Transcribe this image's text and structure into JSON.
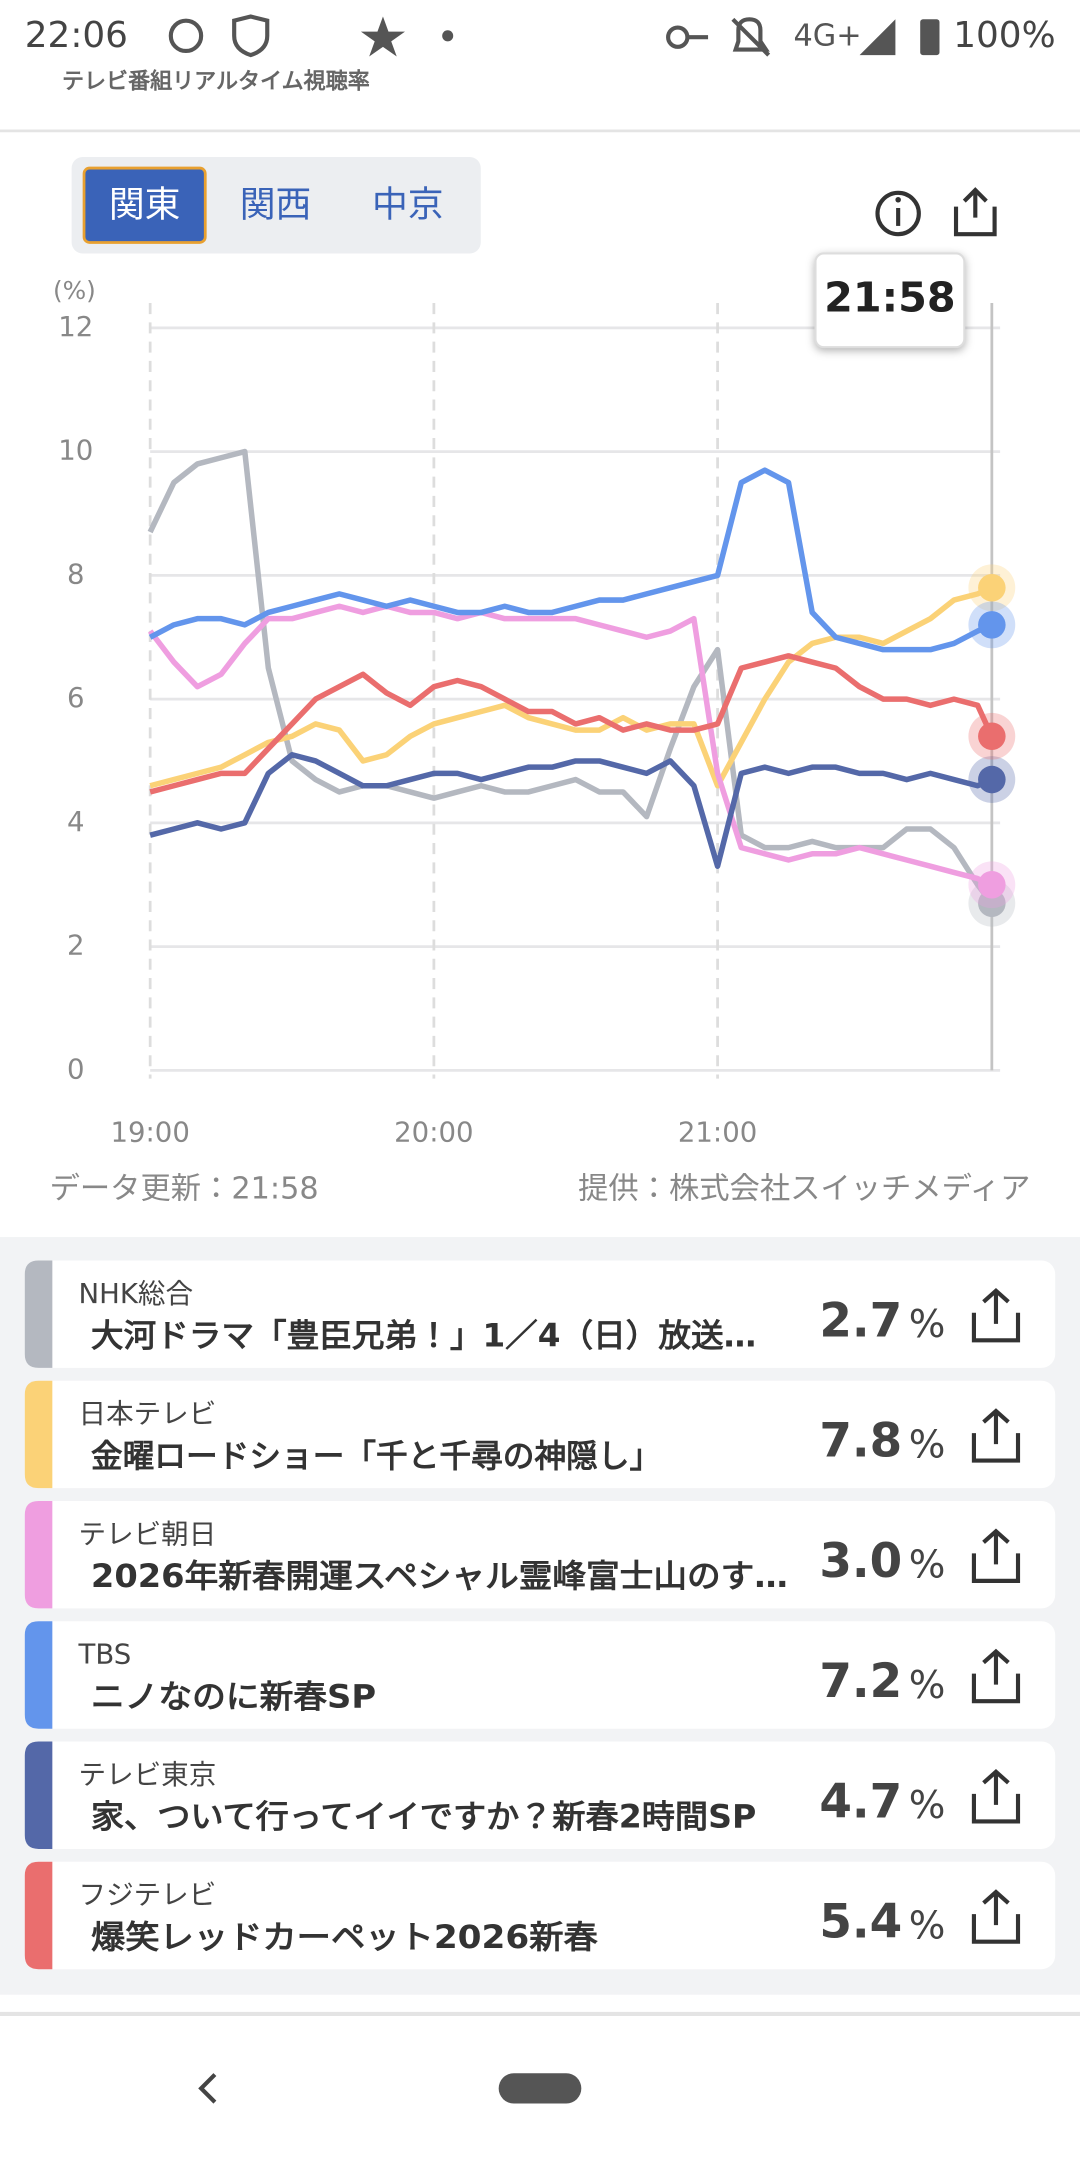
{
  "status_bar": {
    "time": "22:06",
    "network": "4G+",
    "battery": "100%"
  },
  "app_title": "テレビ番組リアルタイム視聴率",
  "region_tabs": [
    "関東",
    "関西",
    "中京"
  ],
  "tooltip": "21:58",
  "footer": {
    "updated": "データ更新：21:58",
    "provider": "提供：株式会社スイッチメディア"
  },
  "chart_data": {
    "type": "line",
    "y_unit_label": "(%)",
    "unit": "%",
    "x": [
      "19:00",
      "19:05",
      "19:10",
      "19:15",
      "19:20",
      "19:25",
      "19:30",
      "19:35",
      "19:40",
      "19:45",
      "19:50",
      "19:55",
      "20:00",
      "20:05",
      "20:10",
      "20:15",
      "20:20",
      "20:25",
      "20:30",
      "20:35",
      "20:40",
      "20:45",
      "20:50",
      "20:55",
      "21:00",
      "21:05",
      "21:10",
      "21:15",
      "21:20",
      "21:25",
      "21:30",
      "21:35",
      "21:40",
      "21:45",
      "21:50",
      "21:55",
      "21:58"
    ],
    "xlim": [
      "19:00",
      "21:58"
    ],
    "xticks": [
      "19:00",
      "20:00",
      "21:00"
    ],
    "ylim": [
      0,
      12
    ],
    "yticks": [
      0,
      2,
      4,
      6,
      8,
      10,
      12
    ],
    "grid": true,
    "series": [
      {
        "name": "NHK総合",
        "program": "大河ドラマ「豊臣兄弟！」1／4（日）放送…",
        "rating": "2.7",
        "color": "#b4b8c0",
        "values": [
          8.7,
          9.5,
          9.8,
          9.9,
          10.0,
          6.5,
          5.0,
          4.7,
          4.5,
          4.6,
          4.6,
          4.5,
          4.4,
          4.5,
          4.6,
          4.5,
          4.5,
          4.6,
          4.7,
          4.5,
          4.5,
          4.1,
          5.2,
          6.2,
          6.8,
          3.8,
          3.6,
          3.6,
          3.7,
          3.6,
          3.6,
          3.6,
          3.9,
          3.9,
          3.6,
          3.0,
          2.7
        ]
      },
      {
        "name": "日本テレビ",
        "program": "金曜ロードショー「千と千尋の神隠し」",
        "rating": "7.8",
        "color": "#fbd277",
        "values": [
          4.6,
          4.7,
          4.8,
          4.9,
          5.1,
          5.3,
          5.4,
          5.6,
          5.5,
          5.0,
          5.1,
          5.4,
          5.6,
          5.7,
          5.8,
          5.9,
          5.7,
          5.6,
          5.5,
          5.5,
          5.7,
          5.5,
          5.6,
          5.6,
          4.6,
          5.3,
          6.0,
          6.6,
          6.9,
          7.0,
          7.0,
          6.9,
          7.1,
          7.3,
          7.6,
          7.7,
          7.8
        ]
      },
      {
        "name": "テレビ朝日",
        "program": "2026年新春開運スペシャル霊峰富士山のす…",
        "rating": "3.0",
        "color": "#ef9ee0",
        "values": [
          7.1,
          6.6,
          6.2,
          6.4,
          6.9,
          7.3,
          7.3,
          7.4,
          7.5,
          7.4,
          7.5,
          7.4,
          7.4,
          7.3,
          7.4,
          7.3,
          7.3,
          7.3,
          7.3,
          7.2,
          7.1,
          7.0,
          7.1,
          7.3,
          4.8,
          3.6,
          3.5,
          3.4,
          3.5,
          3.5,
          3.6,
          3.5,
          3.4,
          3.3,
          3.2,
          3.1,
          3.0
        ]
      },
      {
        "name": "TBS",
        "program": "ニノなのに新春SP",
        "rating": "7.2",
        "color": "#6395ec",
        "values": [
          7.0,
          7.2,
          7.3,
          7.3,
          7.2,
          7.4,
          7.5,
          7.6,
          7.7,
          7.6,
          7.5,
          7.6,
          7.5,
          7.4,
          7.4,
          7.5,
          7.4,
          7.4,
          7.5,
          7.6,
          7.6,
          7.7,
          7.8,
          7.9,
          8.0,
          9.5,
          9.7,
          9.5,
          7.4,
          7.0,
          6.9,
          6.8,
          6.8,
          6.8,
          6.9,
          7.1,
          7.2
        ]
      },
      {
        "name": "テレビ東京",
        "program": "家、ついて行ってイイですか？新春2時間SP",
        "rating": "4.7",
        "color": "#5468a8",
        "values": [
          3.8,
          3.9,
          4.0,
          3.9,
          4.0,
          4.8,
          5.1,
          5.0,
          4.8,
          4.6,
          4.6,
          4.7,
          4.8,
          4.8,
          4.7,
          4.8,
          4.9,
          4.9,
          5.0,
          5.0,
          4.9,
          4.8,
          5.0,
          4.6,
          3.3,
          4.8,
          4.9,
          4.8,
          4.9,
          4.9,
          4.8,
          4.8,
          4.7,
          4.8,
          4.7,
          4.6,
          4.7
        ]
      },
      {
        "name": "フジテレビ",
        "program": "爆笑レッドカーペット2026新春",
        "rating": "5.4",
        "color": "#ea6e6e",
        "values": [
          4.5,
          4.6,
          4.7,
          4.8,
          4.8,
          5.2,
          5.6,
          6.0,
          6.2,
          6.4,
          6.1,
          5.9,
          6.2,
          6.3,
          6.2,
          6.0,
          5.8,
          5.8,
          5.6,
          5.7,
          5.5,
          5.6,
          5.5,
          5.5,
          5.6,
          6.5,
          6.6,
          6.7,
          6.6,
          6.5,
          6.2,
          6.0,
          6.0,
          5.9,
          6.0,
          5.9,
          5.4
        ]
      }
    ]
  }
}
